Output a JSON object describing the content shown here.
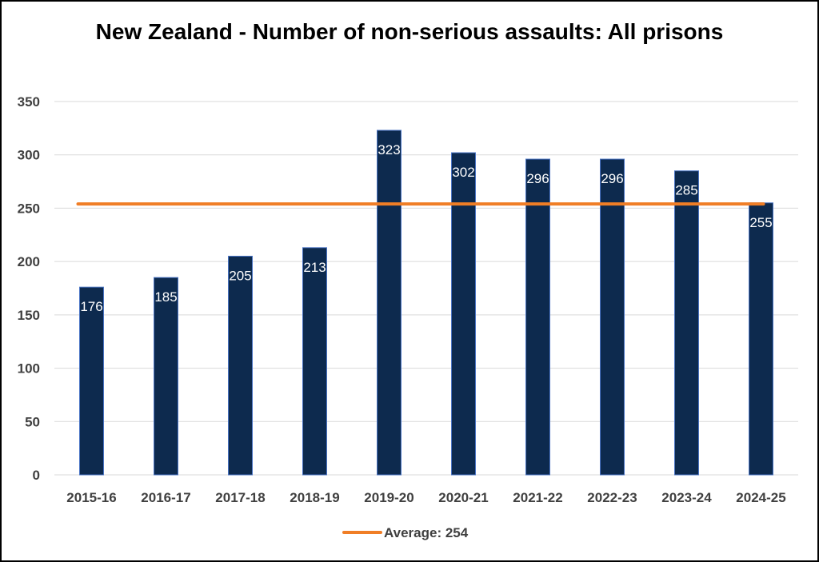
{
  "chart_data": {
    "type": "bar",
    "title": "New Zealand - Number of non-serious assaults: All prisons",
    "categories": [
      "2015-16",
      "2016-17",
      "2017-18",
      "2018-19",
      "2019-20",
      "2020-21",
      "2021-22",
      "2022-23",
      "2023-24",
      "2024-25"
    ],
    "series": [
      {
        "values": [
          176,
          185,
          205,
          213,
          323,
          302,
          296,
          296,
          285,
          255
        ],
        "color": "#0d2a4e"
      }
    ],
    "reference_line": {
      "name": "Average: 254",
      "value": 254,
      "color": "#f07e26"
    },
    "ylim": [
      0,
      350
    ],
    "yticks": [
      0,
      50,
      100,
      150,
      200,
      250,
      300,
      350
    ],
    "xlabel": "",
    "ylabel": "",
    "grid": true,
    "legend": "bottom",
    "data_labels": true
  },
  "colors": {
    "bar": "#0d2a4e",
    "bar_edge": "#4a74c4",
    "average_line": "#f07e26",
    "grid": "#d9d9d9"
  }
}
